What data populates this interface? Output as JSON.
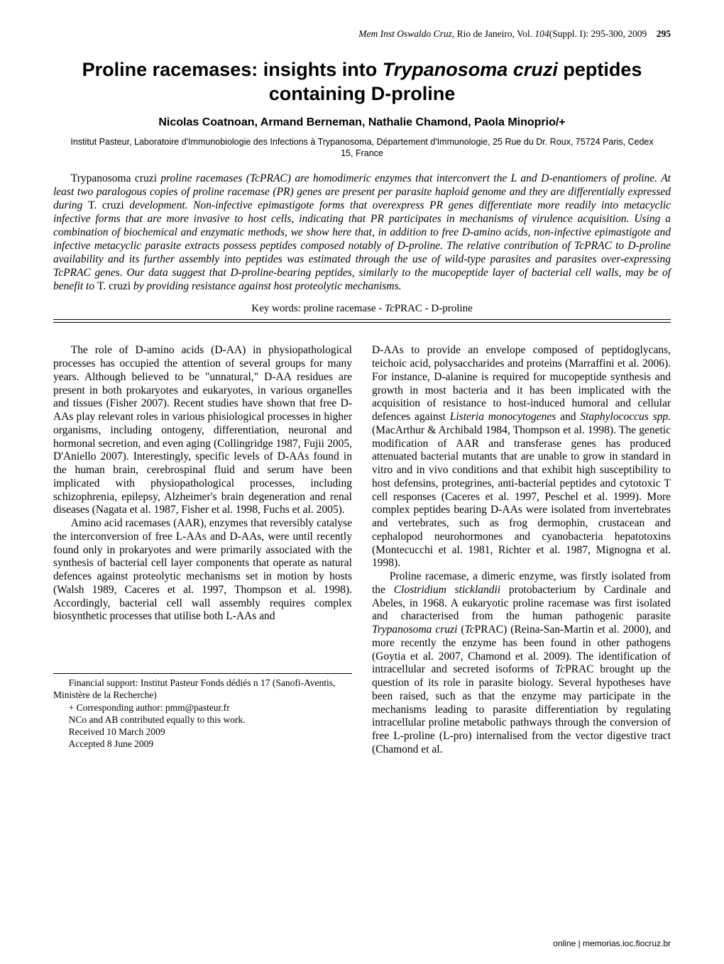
{
  "header": {
    "journal_italic": "Mem Inst Oswaldo Cruz",
    "city": ", Rio de Janeiro, Vol. ",
    "vol_bold": "104",
    "issue": "(Suppl. I): 295-300, 2009",
    "page_bold": "295"
  },
  "title_lines": {
    "l1_pre": "Proline racemases: insights into ",
    "l1_species": "Trypanosoma cruzi",
    "l1_post": " peptides",
    "l2": "containing D-proline"
  },
  "authors": "Nicolas Coatnoan, Armand Berneman, Nathalie Chamond, Paola Minoprio/+",
  "affiliation": "Institut Pasteur, Laboratoire d'Immunobiologie des Infections à Trypanosoma, Département d'Immunologie, 25 Rue du Dr. Roux, 75724 Paris, Cedex 15, France",
  "abstract": {
    "s1a": "Trypanosoma cruzi ",
    "s1b": "proline racemases (TcPRAC) are homodimeric enzymes that interconvert the L and D-enantiomers of proline. At least two paralogous copies of proline racemase (PR) genes are present per parasite haploid genome and they are differentially expressed during ",
    "s1c": "T. cruzi ",
    "s1d": "development. Non-infective epimastigote forms that overexpress PR genes differentiate more readily into metacyclic infective forms that are more invasive to host cells, indicating that PR participates in mechanisms of virulence acquisition. Using a combination of biochemical and enzymatic methods, we show here that, in addition to free D-amino acids, non-infective epimastigote and infective metacyclic parasite extracts possess peptides composed notably of D-proline. The relative contribution of TcPRAC to D-proline availability and its further assembly into peptides was estimated through the use of wild-type parasites and parasites over-expressing TcPRAC genes. Our data suggest that D-proline-bearing peptides, similarly to the mucopeptide layer of bacterial cell walls, may be of benefit to ",
    "s1e": "T. cruzi ",
    "s1f": "by providing resistance against host proteolytic mechanisms."
  },
  "keywords": {
    "pre": "Key words: proline racemase - ",
    "it": "Tc",
    "post": "PRAC - D-proline"
  },
  "body": {
    "p1": "The role of D-amino acids (D-AA) in physiopathological processes has occupied the attention of several groups for many years. Although believed to be \"unnatural,\" D-AA residues are present in both prokaryotes and eukaryotes, in various organelles and tissues (Fisher 2007). Recent studies have shown that free D-AAs play relevant roles in various phisiological processes in higher organisms, including ontogeny, differentiation, neuronal and hormonal secretion, and even aging (Collingridge 1987, Fujii 2005, D'Aniello 2007). Interestingly, specific levels of D-AAs found in the human brain, cerebrospinal fluid and serum have been implicated with physiopathological processes, including schizophrenia, epilepsy, Alzheimer's brain degeneration and renal diseases (Nagata et al. 1987, Fisher et al. 1998, Fuchs et al. 2005).",
    "p2": "Amino acid racemases (AAR), enzymes that reversibly catalyse the interconversion of free L-AAs and D-AAs, were until recently found only in prokaryotes and were primarily associated with the synthesis of bacterial cell layer components that operate as natural defences against proteolytic mechanisms set in motion by hosts (Walsh 1989, Caceres et al. 1997, Thompson et al. 1998). Accordingly, bacterial cell wall assembly requires complex biosynthetic processes that utilise both L-AAs and",
    "p3a": "D-AAs to provide an envelope composed of peptidoglycans, teichoic acid, polysaccharides and proteins (Marraffini et al. 2006). For instance, D-alanine is required for mucopeptide synthesis and growth in most bacteria and it has been implicated with the acquisition of resistance to host-induced humoral and cellular defences against ",
    "p3b": "Listeria monocytogenes",
    "p3c": " and ",
    "p3d": "Staphylococcus spp.",
    "p3e": " (MacArthur & Archibald 1984, Thompson et al. 1998). The genetic modification of AAR and transferase genes has produced attenuated bacterial mutants that are unable to grow in standard in vitro and in vivo conditions and that exhibit high susceptibility to host defensins, protegrines, anti-bacterial peptides and cytotoxic T cell responses (Caceres et al. 1997, Peschel et al. 1999). More complex peptides bearing D-AAs were isolated from invertebrates and vertebrates, such as frog dermophin, crustacean and cephalopod neurohormones and cyanobacteria hepatotoxins (Montecucchi et al. 1981, Richter et al. 1987, Mignogna et al. 1998).",
    "p4a": "Proline racemase, a dimeric enzyme, was firstly isolated from the ",
    "p4b": "Clostridium sticklandii",
    "p4c": " protobacterium by Cardinale and Abeles, in 1968. A eukaryotic proline racemase was first isolated and characterised from the human pathogenic parasite ",
    "p4d": "Trypanosoma cruzi",
    "p4e": " (",
    "p4f": "Tc",
    "p4g": "PRAC) (Reina-San-Martin et al. 2000), and more recently the enzyme has been found in other pathogens (Goytia et al. 2007, Chamond et al. 2009). The identification of intracellular and secreted isoforms of ",
    "p4h": "Tc",
    "p4i": "PRAC brought up the question of its role in parasite biology. Several hypotheses have been raised, such as that the enzyme may participate in the mechanisms leading to parasite differentiation by regulating intracellular proline metabolic pathways through the conversion of free L-proline (L-pro) internalised from the vector digestive tract (Chamond et al."
  },
  "footnotes": {
    "f1": "Financial support: Institut Pasteur Fonds dédiés n 17 (Sanofi-Aventis, Ministère de la Recherche)",
    "f2": "+ Corresponding author: pmm@pasteur.fr",
    "f3": "NCo and AB contributed equally to this work.",
    "f4": "Received 10 March 2009",
    "f5": "Accepted 8 June 2009"
  },
  "footer_link": "online | memorias.ioc.fiocruz.br"
}
